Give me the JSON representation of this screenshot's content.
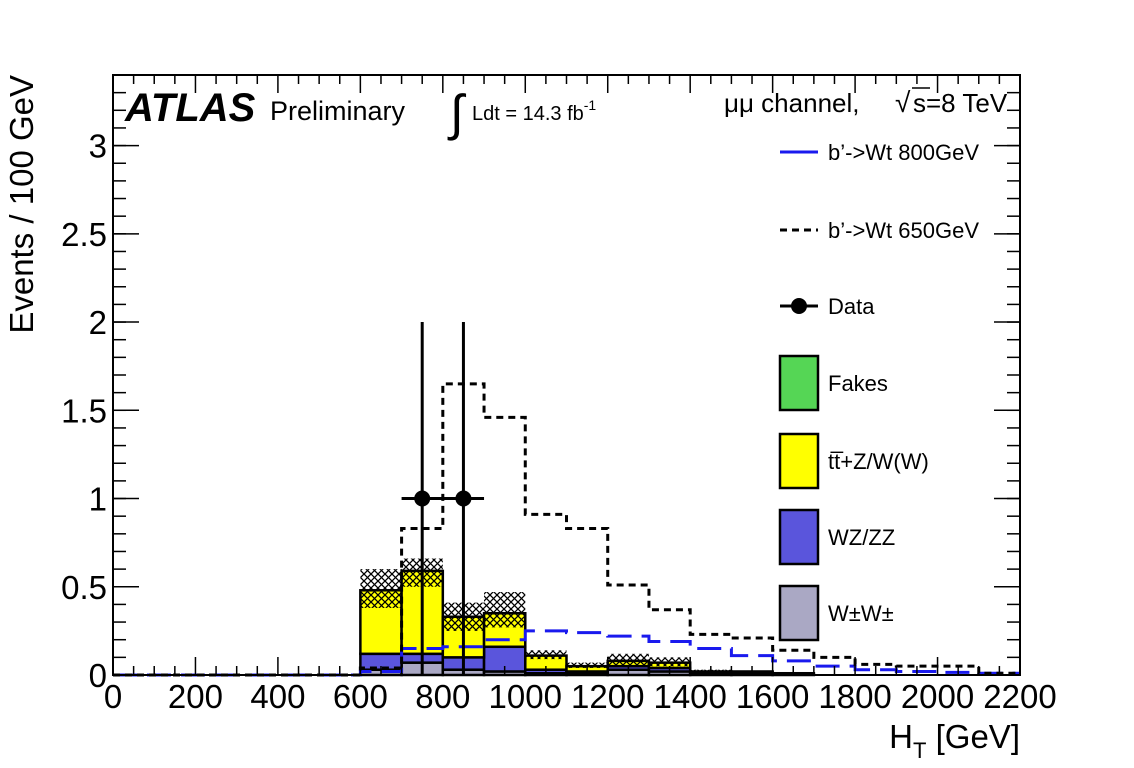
{
  "header": {
    "experiment": "ATLAS",
    "status": "Preliminary",
    "lumi_label": "Ldt = 14.3 fb",
    "lumi_exp": "-1",
    "channel_label": "μμ channel,",
    "energy_label": "s=8 TeV"
  },
  "chart_data": {
    "type": "bar",
    "xlabel": "H",
    "xlabel_sub": "T",
    "xlabel_unit": " [GeV]",
    "ylabel": "Events / 100 GeV",
    "xlim": [
      0,
      2200
    ],
    "ylim": [
      0,
      3.4
    ],
    "xticks": [
      0,
      200,
      400,
      600,
      800,
      1000,
      1200,
      1400,
      1600,
      1800,
      2000,
      2200
    ],
    "yticks": [
      0,
      0.5,
      1,
      1.5,
      2,
      2.5,
      3
    ],
    "bin_edges": [
      0,
      100,
      200,
      300,
      400,
      500,
      600,
      700,
      800,
      900,
      1000,
      1100,
      1200,
      1300,
      1400,
      1500,
      1600,
      1700,
      1800,
      1900,
      2000,
      2100,
      2200
    ],
    "stacked_series": [
      {
        "name": "W±W±",
        "color": "#aaa8c4",
        "values": [
          0,
          0,
          0,
          0,
          0,
          0,
          0.03,
          0.07,
          0.03,
          0.02,
          0.01,
          0.01,
          0.03,
          0.02,
          0.01,
          0.01,
          0.005,
          0,
          0,
          0,
          0,
          0
        ]
      },
      {
        "name": "WZ/ZZ",
        "color": "#5a55dc",
        "values": [
          0,
          0,
          0,
          0,
          0,
          0,
          0.09,
          0.05,
          0.07,
          0.14,
          0.02,
          0.01,
          0.02,
          0.02,
          0.005,
          0.005,
          0.005,
          0,
          0,
          0,
          0,
          0
        ]
      },
      {
        "name": "tt̅+Z/W(W)",
        "color": "#ffff00",
        "values": [
          0,
          0,
          0,
          0,
          0,
          0,
          0.36,
          0.47,
          0.23,
          0.19,
          0.08,
          0.03,
          0.03,
          0.03,
          0.005,
          0.005,
          0,
          0,
          0,
          0,
          0,
          0
        ]
      },
      {
        "name": "Fakes",
        "color": "#55d655",
        "values": [
          0,
          0,
          0,
          0,
          0,
          0,
          0,
          0,
          0,
          0,
          0,
          0,
          0,
          0,
          0,
          0,
          0,
          0,
          0,
          0,
          0,
          0
        ]
      }
    ],
    "uncertainty_band": {
      "lo": [
        0,
        0,
        0,
        0,
        0,
        0,
        0.38,
        0.5,
        0.25,
        0.27,
        0.09,
        0.04,
        0.05,
        0.05,
        0.01,
        0.01,
        0.005,
        0,
        0,
        0,
        0,
        0
      ],
      "hi": [
        0,
        0,
        0,
        0,
        0,
        0,
        0.6,
        0.66,
        0.41,
        0.47,
        0.14,
        0.07,
        0.12,
        0.1,
        0.03,
        0.025,
        0.015,
        0,
        0,
        0,
        0,
        0
      ]
    },
    "signals": [
      {
        "name": "b’->Wt 800GeV",
        "color": "#1a1aee",
        "dash": "long",
        "values": [
          0,
          0,
          0,
          0,
          0,
          0,
          0.02,
          0.15,
          0.16,
          0.2,
          0.25,
          0.24,
          0.22,
          0.19,
          0.15,
          0.11,
          0.08,
          0.05,
          0.03,
          0.02,
          0.015,
          0.01
        ]
      },
      {
        "name": "b’->Wt 650GeV",
        "color": "#000000",
        "dash": "short",
        "values": [
          0,
          0,
          0,
          0,
          0,
          0,
          0.04,
          0.83,
          1.65,
          1.46,
          0.91,
          0.83,
          0.51,
          0.37,
          0.23,
          0.21,
          0.14,
          0.1,
          0.06,
          0.05,
          0.05,
          0.01
        ]
      }
    ],
    "data_points": {
      "name": "Data",
      "points": [
        {
          "x": 750,
          "y": 1,
          "xerr": 50,
          "yerr_lo": 1,
          "yerr_hi": 1
        },
        {
          "x": 850,
          "y": 1,
          "xerr": 50,
          "yerr_lo": 1,
          "yerr_hi": 1
        }
      ]
    },
    "legend": {
      "placement": "right",
      "entries": [
        {
          "label": "b’->Wt 800GeV",
          "style": "line-long-dash",
          "color": "#1a1aee"
        },
        {
          "label": "b’->Wt 650GeV",
          "style": "line-short-dash",
          "color": "#000000"
        },
        {
          "label": "Data",
          "style": "marker",
          "color": "#000000"
        },
        {
          "label": "Fakes",
          "style": "box",
          "color": "#55d655"
        },
        {
          "label": "tt̅+Z/W(W)",
          "style": "box",
          "color": "#ffff00"
        },
        {
          "label": "WZ/ZZ",
          "style": "box",
          "color": "#5a55dc"
        },
        {
          "label": "W±W±",
          "style": "box",
          "color": "#aaa8c4"
        }
      ]
    }
  }
}
